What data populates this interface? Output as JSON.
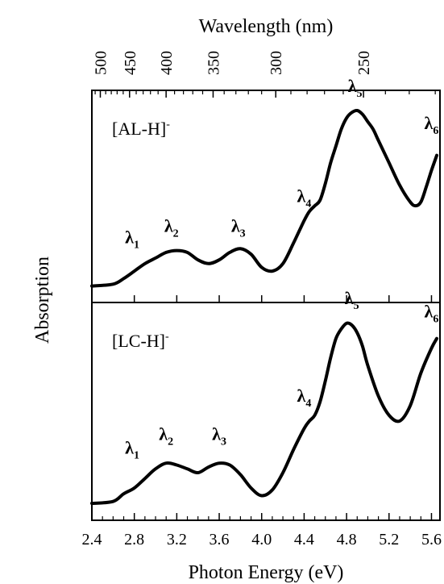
{
  "chart_data": {
    "type": "line",
    "xlabel": "Photon Energy (eV)",
    "x2label": "Wavelength (nm)",
    "ylabel": "Absorption",
    "xlim": [
      2.4,
      5.68
    ],
    "xticks": [
      "2.4",
      "2.8",
      "3.2",
      "3.6",
      "4.0",
      "4.4",
      "4.8",
      "5.2",
      "5.6"
    ],
    "x2ticks": [
      {
        "label": "500",
        "nm": 500
      },
      {
        "label": "450",
        "nm": 450
      },
      {
        "label": "400",
        "nm": 400
      },
      {
        "label": "350",
        "nm": 350
      },
      {
        "label": "300",
        "nm": 300
      },
      {
        "label": "250",
        "nm": 250
      }
    ],
    "ylim": [
      0,
      1
    ],
    "grid": false,
    "panels": [
      {
        "label": "[AL-H]",
        "label_sup": "-",
        "series": {
          "x": [
            2.4,
            2.6,
            2.7,
            2.8,
            2.9,
            3.0,
            3.1,
            3.2,
            3.3,
            3.4,
            3.5,
            3.6,
            3.7,
            3.8,
            3.9,
            4.0,
            4.1,
            4.2,
            4.3,
            4.4,
            4.45,
            4.5,
            4.55,
            4.6,
            4.65,
            4.7,
            4.75,
            4.8,
            4.85,
            4.9,
            4.95,
            5.0,
            5.05,
            5.1,
            5.2,
            5.3,
            5.4,
            5.45,
            5.5,
            5.55,
            5.6,
            5.65
          ],
          "y": [
            0.02,
            0.03,
            0.06,
            0.1,
            0.14,
            0.17,
            0.2,
            0.21,
            0.2,
            0.16,
            0.14,
            0.16,
            0.2,
            0.22,
            0.19,
            0.12,
            0.1,
            0.14,
            0.25,
            0.37,
            0.42,
            0.45,
            0.48,
            0.57,
            0.68,
            0.77,
            0.86,
            0.92,
            0.95,
            0.96,
            0.94,
            0.9,
            0.86,
            0.8,
            0.68,
            0.56,
            0.47,
            0.45,
            0.47,
            0.55,
            0.64,
            0.72
          ]
        },
        "annotations": [
          {
            "base": "λ",
            "sub": "1",
            "x": 2.78,
            "y": 0.25
          },
          {
            "base": "λ",
            "sub": "2",
            "x": 3.15,
            "y": 0.31
          },
          {
            "base": "λ",
            "sub": "3",
            "x": 3.78,
            "y": 0.31
          },
          {
            "base": "λ",
            "sub": "4",
            "x": 4.4,
            "y": 0.47
          },
          {
            "base": "λ",
            "sub": "5",
            "x": 4.88,
            "y": 1.06
          },
          {
            "base": "λ",
            "sub": "6",
            "x": 5.6,
            "y": 0.86
          }
        ]
      },
      {
        "label": "[LC-H]",
        "label_sup": "-",
        "series": {
          "x": [
            2.4,
            2.6,
            2.7,
            2.8,
            2.9,
            3.0,
            3.1,
            3.2,
            3.3,
            3.4,
            3.5,
            3.6,
            3.7,
            3.8,
            3.9,
            4.0,
            4.1,
            4.2,
            4.3,
            4.4,
            4.45,
            4.5,
            4.55,
            4.6,
            4.65,
            4.7,
            4.75,
            4.8,
            4.85,
            4.9,
            4.95,
            5.0,
            5.1,
            5.2,
            5.3,
            5.4,
            5.5,
            5.6,
            5.65
          ],
          "y": [
            0.02,
            0.03,
            0.07,
            0.1,
            0.15,
            0.2,
            0.23,
            0.22,
            0.2,
            0.18,
            0.21,
            0.23,
            0.22,
            0.17,
            0.1,
            0.06,
            0.09,
            0.18,
            0.3,
            0.41,
            0.45,
            0.48,
            0.55,
            0.66,
            0.78,
            0.88,
            0.93,
            0.96,
            0.95,
            0.91,
            0.84,
            0.74,
            0.58,
            0.48,
            0.45,
            0.53,
            0.7,
            0.83,
            0.88
          ]
        },
        "annotations": [
          {
            "base": "λ",
            "sub": "1",
            "x": 2.78,
            "y": 0.28
          },
          {
            "base": "λ",
            "sub": "2",
            "x": 3.1,
            "y": 0.35
          },
          {
            "base": "λ",
            "sub": "3",
            "x": 3.6,
            "y": 0.35
          },
          {
            "base": "λ",
            "sub": "4",
            "x": 4.4,
            "y": 0.55
          },
          {
            "base": "λ",
            "sub": "5",
            "x": 4.85,
            "y": 1.06
          },
          {
            "base": "λ",
            "sub": "6",
            "x": 5.6,
            "y": 0.99
          }
        ]
      }
    ]
  }
}
